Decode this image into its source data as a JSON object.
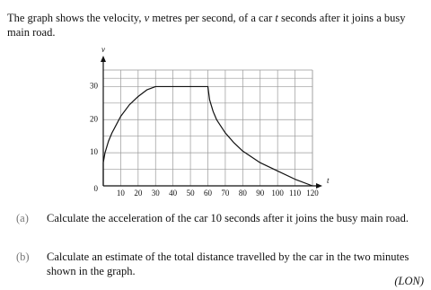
{
  "intro": [
    "The graph shows the velocity, ",
    "v",
    " metres per second, of a car ",
    "t",
    " seconds after it joins a busy main road."
  ],
  "chart_data": {
    "type": "line",
    "y_label": "v",
    "x_label": "t",
    "x": [
      0,
      0,
      1,
      3,
      5,
      10,
      15,
      20,
      25,
      30,
      60,
      61,
      63,
      65,
      70,
      75,
      80,
      90,
      100,
      110,
      120
    ],
    "series": [
      {
        "name": "velocity",
        "color": "#111111",
        "values": [
          0,
          7,
          10,
          13.5,
          16,
          21,
          24.5,
          27,
          29,
          30,
          30,
          26,
          22.5,
          20,
          16,
          13,
          10.5,
          7,
          4.5,
          2,
          0
        ]
      }
    ],
    "xlim": [
      0,
      120
    ],
    "ylim": [
      0,
      35
    ],
    "xticks": [
      10,
      20,
      30,
      40,
      50,
      60,
      70,
      80,
      90,
      100,
      110,
      120
    ],
    "yticks": [
      0,
      10,
      20,
      30
    ],
    "grid": true
  },
  "questions": [
    {
      "label": "(a)",
      "text": "Calculate the acceleration of the car 10 seconds after it joins the busy main road."
    },
    {
      "label": "(b)",
      "text": "Calculate an estimate of the total distance travelled by the car in the two minutes shown in the graph."
    }
  ],
  "source": "(LON)"
}
